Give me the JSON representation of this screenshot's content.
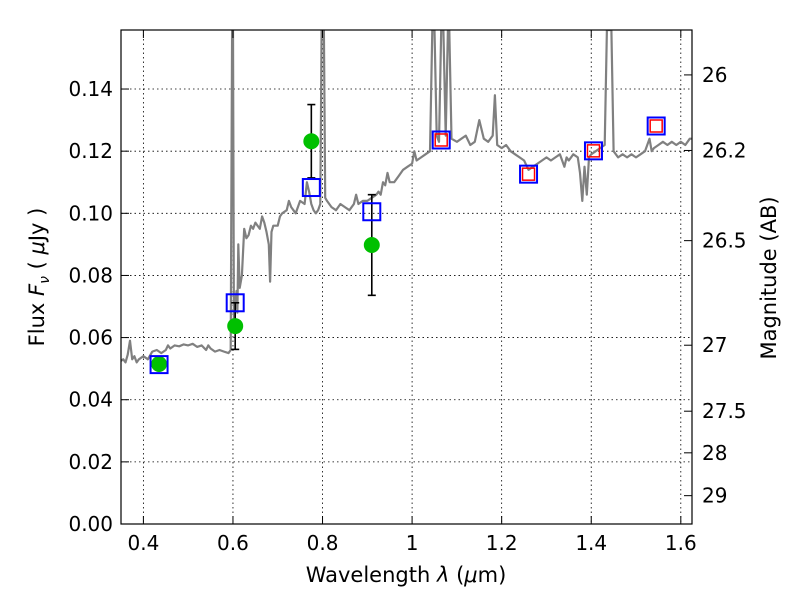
{
  "chart_data": {
    "type": "scatter",
    "xlabel": "Wavelength  λ (μm)",
    "ylabel": "Flux  F_ν  ( μJy )",
    "ylabel_parts": {
      "a": "Flux  ",
      "b": "F",
      "c": "ν",
      "d": "  ( ",
      "e": "μ",
      "f": "Jy )"
    },
    "xlabel_parts": {
      "a": "Wavelength  ",
      "b": "λ",
      "c": " (",
      "d": "μ",
      "e": "m)"
    },
    "y2label": "Magnitude (AB)",
    "xlim": [
      0.35,
      1.625
    ],
    "ylim": [
      0.0,
      0.159
    ],
    "grid": true,
    "x_ticks": [
      {
        "v": 0.4,
        "label": "0.4"
      },
      {
        "v": 0.6,
        "label": "0.6"
      },
      {
        "v": 0.8,
        "label": "0.8"
      },
      {
        "v": 1.0,
        "label": "1"
      },
      {
        "v": 1.2,
        "label": "1.2"
      },
      {
        "v": 1.4,
        "label": "1.4"
      },
      {
        "v": 1.6,
        "label": "1.6"
      }
    ],
    "y_ticks": [
      {
        "v": 0.0,
        "label": "0.00"
      },
      {
        "v": 0.02,
        "label": "0.02"
      },
      {
        "v": 0.04,
        "label": "0.04"
      },
      {
        "v": 0.06,
        "label": "0.06"
      },
      {
        "v": 0.08,
        "label": "0.08"
      },
      {
        "v": 0.1,
        "label": "0.10"
      },
      {
        "v": 0.12,
        "label": "0.12"
      },
      {
        "v": 0.14,
        "label": "0.14"
      }
    ],
    "mag_ticks": [
      {
        "mag": 26,
        "label": "26"
      },
      {
        "mag": 26.2,
        "label": "26.2"
      },
      {
        "mag": 26.5,
        "label": "26.5"
      },
      {
        "mag": 27,
        "label": "27"
      },
      {
        "mag": 27.5,
        "label": "27.5"
      },
      {
        "mag": 28,
        "label": "28"
      },
      {
        "mag": 29,
        "label": "29"
      }
    ],
    "model_spectrum": {
      "color": "#808080",
      "points": [
        [
          0.35,
          0.0525
        ],
        [
          0.355,
          0.053
        ],
        [
          0.36,
          0.052
        ],
        [
          0.365,
          0.0545
        ],
        [
          0.37,
          0.059
        ],
        [
          0.375,
          0.053
        ],
        [
          0.38,
          0.054
        ],
        [
          0.385,
          0.052
        ],
        [
          0.39,
          0.053
        ],
        [
          0.4,
          0.054
        ],
        [
          0.41,
          0.053
        ],
        [
          0.42,
          0.0555
        ],
        [
          0.43,
          0.056
        ],
        [
          0.44,
          0.055
        ],
        [
          0.45,
          0.056
        ],
        [
          0.455,
          0.0575
        ],
        [
          0.46,
          0.0565
        ],
        [
          0.47,
          0.0575
        ],
        [
          0.48,
          0.0572
        ],
        [
          0.49,
          0.0578
        ],
        [
          0.5,
          0.0575
        ],
        [
          0.51,
          0.058
        ],
        [
          0.52,
          0.057
        ],
        [
          0.53,
          0.0575
        ],
        [
          0.54,
          0.056
        ],
        [
          0.545,
          0.0575
        ],
        [
          0.55,
          0.0565
        ],
        [
          0.56,
          0.0555
        ],
        [
          0.57,
          0.056
        ],
        [
          0.58,
          0.0555
        ],
        [
          0.59,
          0.055
        ],
        [
          0.595,
          0.056
        ],
        [
          0.598,
          0.159
        ],
        [
          0.6,
          0.159
        ],
        [
          0.602,
          0.065
        ],
        [
          0.605,
          0.07
        ],
        [
          0.608,
          0.075
        ],
        [
          0.61,
          0.068
        ],
        [
          0.612,
          0.09
        ],
        [
          0.615,
          0.076
        ],
        [
          0.62,
          0.08
        ],
        [
          0.625,
          0.095
        ],
        [
          0.63,
          0.092
        ],
        [
          0.635,
          0.093
        ],
        [
          0.64,
          0.096
        ],
        [
          0.645,
          0.095
        ],
        [
          0.65,
          0.097
        ],
        [
          0.655,
          0.096
        ],
        [
          0.66,
          0.095
        ],
        [
          0.665,
          0.099
        ],
        [
          0.67,
          0.097
        ],
        [
          0.675,
          0.094
        ],
        [
          0.68,
          0.09
        ],
        [
          0.683,
          0.078
        ],
        [
          0.686,
          0.094
        ],
        [
          0.69,
          0.096
        ],
        [
          0.695,
          0.096
        ],
        [
          0.7,
          0.096
        ],
        [
          0.705,
          0.099
        ],
        [
          0.71,
          0.1
        ],
        [
          0.72,
          0.101
        ],
        [
          0.725,
          0.104
        ],
        [
          0.73,
          0.102
        ],
        [
          0.74,
          0.1
        ],
        [
          0.75,
          0.104
        ],
        [
          0.76,
          0.103
        ],
        [
          0.765,
          0.11
        ],
        [
          0.77,
          0.107
        ],
        [
          0.775,
          0.103
        ],
        [
          0.78,
          0.101
        ],
        [
          0.785,
          0.1
        ],
        [
          0.79,
          0.101
        ],
        [
          0.795,
          0.103
        ],
        [
          0.798,
          0.159
        ],
        [
          0.803,
          0.159
        ],
        [
          0.806,
          0.105
        ],
        [
          0.81,
          0.104
        ],
        [
          0.82,
          0.102
        ],
        [
          0.83,
          0.101
        ],
        [
          0.84,
          0.103
        ],
        [
          0.85,
          0.102
        ],
        [
          0.86,
          0.101
        ],
        [
          0.87,
          0.103
        ],
        [
          0.875,
          0.106
        ],
        [
          0.88,
          0.103
        ],
        [
          0.89,
          0.104
        ],
        [
          0.9,
          0.104
        ],
        [
          0.91,
          0.105
        ],
        [
          0.92,
          0.106
        ],
        [
          0.925,
          0.107
        ],
        [
          0.93,
          0.106
        ],
        [
          0.935,
          0.11
        ],
        [
          0.94,
          0.109
        ],
        [
          0.945,
          0.113
        ],
        [
          0.95,
          0.11
        ],
        [
          0.96,
          0.11
        ],
        [
          0.97,
          0.112
        ],
        [
          0.98,
          0.114
        ],
        [
          0.99,
          0.115
        ],
        [
          1.0,
          0.116
        ],
        [
          1.005,
          0.12
        ],
        [
          1.01,
          0.117
        ],
        [
          1.02,
          0.118
        ],
        [
          1.03,
          0.119
        ],
        [
          1.04,
          0.12
        ],
        [
          1.045,
          0.159
        ],
        [
          1.05,
          0.159
        ],
        [
          1.055,
          0.125
        ],
        [
          1.06,
          0.123
        ],
        [
          1.065,
          0.159
        ],
        [
          1.07,
          0.159
        ],
        [
          1.075,
          0.125
        ],
        [
          1.08,
          0.159
        ],
        [
          1.083,
          0.159
        ],
        [
          1.088,
          0.124
        ],
        [
          1.1,
          0.123
        ],
        [
          1.11,
          0.124
        ],
        [
          1.12,
          0.125
        ],
        [
          1.13,
          0.122
        ],
        [
          1.14,
          0.123
        ],
        [
          1.15,
          0.13
        ],
        [
          1.16,
          0.124
        ],
        [
          1.17,
          0.123
        ],
        [
          1.18,
          0.125
        ],
        [
          1.185,
          0.138
        ],
        [
          1.19,
          0.122
        ],
        [
          1.2,
          0.121
        ],
        [
          1.21,
          0.122
        ],
        [
          1.22,
          0.12
        ],
        [
          1.23,
          0.119
        ],
        [
          1.24,
          0.118
        ],
        [
          1.25,
          0.117
        ],
        [
          1.26,
          0.114
        ],
        [
          1.27,
          0.115
        ],
        [
          1.28,
          0.116
        ],
        [
          1.29,
          0.117
        ],
        [
          1.3,
          0.118
        ],
        [
          1.31,
          0.117
        ],
        [
          1.32,
          0.118
        ],
        [
          1.33,
          0.119
        ],
        [
          1.34,
          0.115
        ],
        [
          1.345,
          0.118
        ],
        [
          1.35,
          0.117
        ],
        [
          1.36,
          0.119
        ],
        [
          1.37,
          0.118
        ],
        [
          1.375,
          0.113
        ],
        [
          1.38,
          0.104
        ],
        [
          1.385,
          0.115
        ],
        [
          1.39,
          0.106
        ],
        [
          1.395,
          0.118
        ],
        [
          1.4,
          0.119
        ],
        [
          1.41,
          0.12
        ],
        [
          1.42,
          0.121
        ],
        [
          1.43,
          0.122
        ],
        [
          1.435,
          0.159
        ],
        [
          1.445,
          0.159
        ],
        [
          1.45,
          0.12
        ],
        [
          1.46,
          0.118
        ],
        [
          1.47,
          0.119
        ],
        [
          1.48,
          0.118
        ],
        [
          1.49,
          0.119
        ],
        [
          1.5,
          0.118
        ],
        [
          1.51,
          0.119
        ],
        [
          1.52,
          0.12
        ],
        [
          1.53,
          0.124
        ],
        [
          1.535,
          0.12
        ],
        [
          1.54,
          0.121
        ],
        [
          1.55,
          0.122
        ],
        [
          1.56,
          0.123
        ],
        [
          1.57,
          0.122
        ],
        [
          1.58,
          0.123
        ],
        [
          1.59,
          0.122
        ],
        [
          1.6,
          0.123
        ],
        [
          1.61,
          0.122
        ],
        [
          1.62,
          0.124
        ],
        [
          1.625,
          0.124
        ]
      ]
    },
    "model_photometry": {
      "color": "#0000ff",
      "x": [
        0.435,
        0.605,
        0.775,
        0.91,
        1.065,
        1.26,
        1.405,
        1.545
      ],
      "y": [
        0.0513,
        0.0712,
        0.1083,
        0.1005,
        0.1236,
        0.1126,
        0.1201,
        0.1281
      ]
    },
    "red_markers": {
      "color": "#ff0000",
      "x": [
        1.065,
        1.26,
        1.405,
        1.545
      ],
      "y": [
        0.1236,
        0.1126,
        0.1201,
        0.1281
      ]
    },
    "observed": {
      "color": "#00c000",
      "x": [
        0.435,
        0.605,
        0.775,
        0.91
      ],
      "y": [
        0.0515,
        0.0637,
        0.1232,
        0.0898
      ],
      "err": [
        0.0,
        0.0075,
        0.0118,
        0.0162
      ]
    }
  }
}
